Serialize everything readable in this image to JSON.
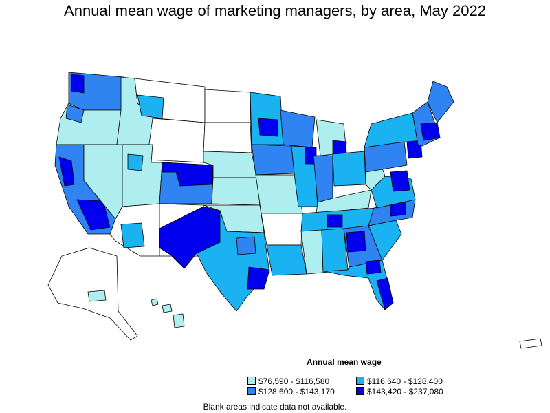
{
  "title": "Annual mean wage of marketing managers, by area, May 2022",
  "legend": {
    "title": "Annual mean wage",
    "items": [
      {
        "label": "$76,590 - $116,580",
        "color": "#aeeeee"
      },
      {
        "label": "$116,640 - $128,400",
        "color": "#1ab2f0"
      },
      {
        "label": "$128,600 - $143,170",
        "color": "#2f84f2"
      },
      {
        "label": "$143,420 - $237,080",
        "color": "#0000ee"
      }
    ]
  },
  "footnote": "Blank areas indicate data not available.",
  "colors": {
    "blank": "#ffffff",
    "border": "#000000"
  }
}
